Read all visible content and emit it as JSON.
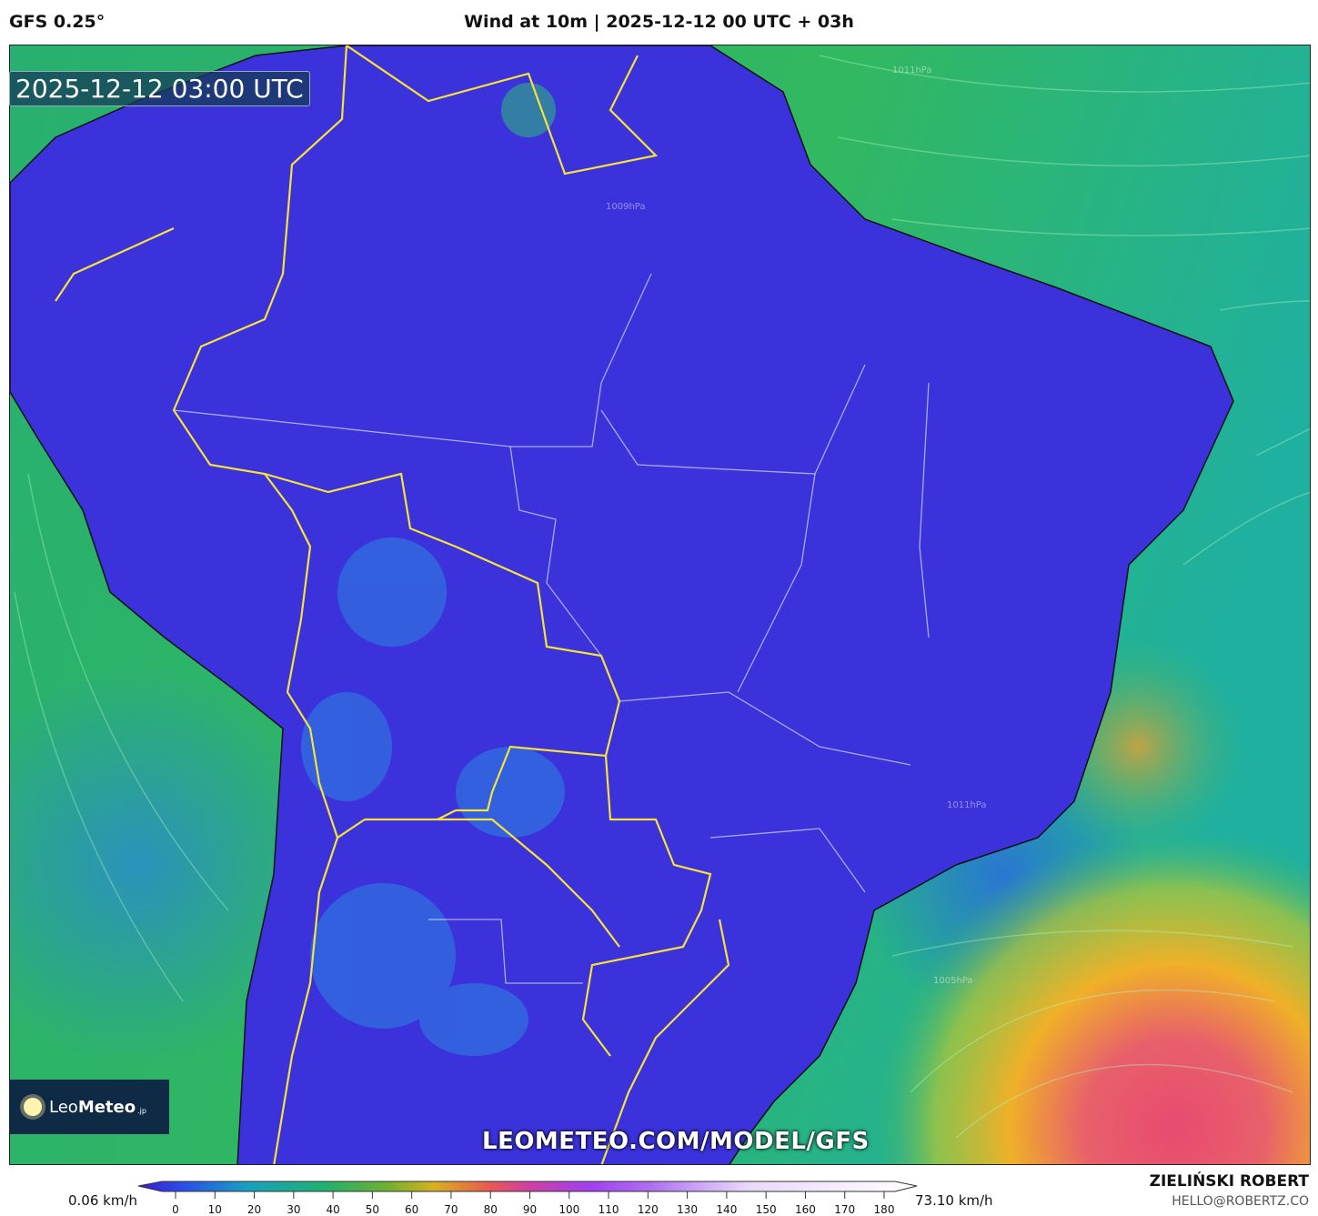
{
  "header": {
    "model": "GFS 0.25°",
    "title": "Wind at 10m | 2025-12-12 00 UTC + 03h"
  },
  "map": {
    "timestamp": "2025-12-12 03:00 UTC",
    "watermark": "LEOMETEO.COM/MODEL/GFS",
    "logo": {
      "part1": "Leo",
      "part2": "Meteo",
      "suffix": ".jp",
      "icon": "sun-icon"
    },
    "pressure_labels": [
      "1011hPa",
      "1009hPa",
      "1011hPa",
      "1005hPa"
    ],
    "colors": {
      "land_low_wind": "#3a30de",
      "ocean": "#2bb46e",
      "high_wind": "#e8506a",
      "medium_wind": "#f0c028",
      "country_border": "#f5e23a"
    }
  },
  "colorbar": {
    "min_label": "0.06 km/h",
    "max_label": "73.10 km/h",
    "unit": "km/h",
    "ticks": [
      "0",
      "10",
      "20",
      "30",
      "40",
      "50",
      "60",
      "70",
      "80",
      "90",
      "100",
      "110",
      "120",
      "130",
      "140",
      "150",
      "160",
      "170",
      "180"
    ]
  },
  "credits": {
    "author": "ZIELIŃSKI ROBERT",
    "email": "HELLO@ROBERTZ.CO"
  }
}
